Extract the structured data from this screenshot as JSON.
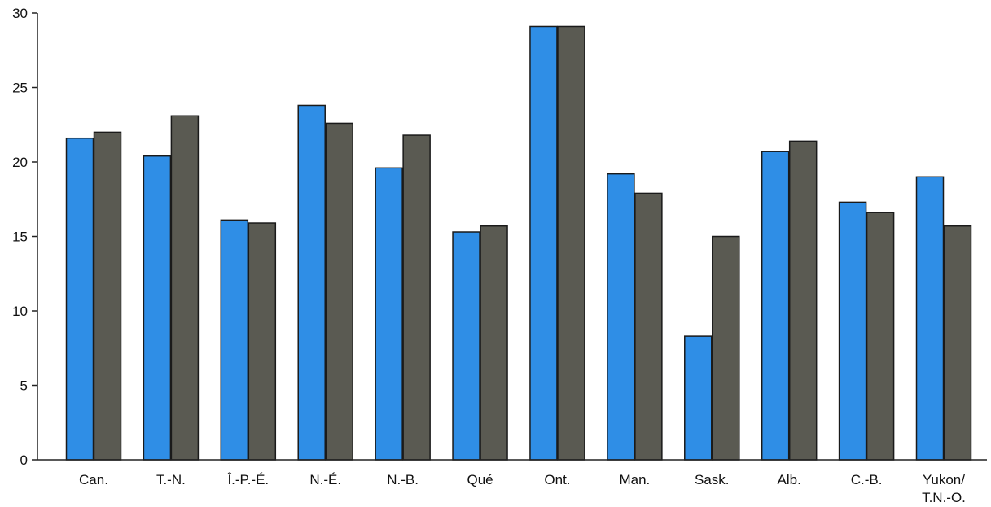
{
  "chart_data": {
    "type": "bar",
    "title": "",
    "xlabel": "",
    "ylabel": "",
    "ylim": [
      0,
      30
    ],
    "yticks": [
      0,
      5,
      10,
      15,
      20,
      25,
      30
    ],
    "grid": false,
    "categories": [
      [
        "Can."
      ],
      [
        "T.-N."
      ],
      [
        "Î.-P.-É."
      ],
      [
        "N.-É."
      ],
      [
        "N.-B."
      ],
      [
        "Qué"
      ],
      [
        "Ont."
      ],
      [
        "Man."
      ],
      [
        "Sask."
      ],
      [
        "Alb."
      ],
      [
        "C.-B."
      ],
      [
        "Yukon/",
        "T.N.-O."
      ]
    ],
    "series": [
      {
        "color": "#2f8ee6",
        "values": [
          21.6,
          20.4,
          16.1,
          23.8,
          19.6,
          15.3,
          29.1,
          19.2,
          8.3,
          20.7,
          17.3,
          19.0
        ]
      },
      {
        "color": "#5a5a52",
        "values": [
          22.0,
          23.1,
          15.9,
          22.6,
          21.8,
          15.7,
          29.1,
          17.9,
          15.0,
          21.4,
          16.6,
          15.7
        ]
      }
    ]
  }
}
